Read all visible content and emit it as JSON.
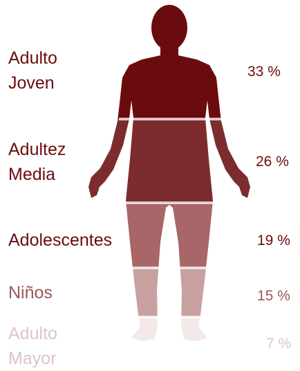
{
  "segments": [
    {
      "label": "Adulto Joven",
      "value": "33 %"
    },
    {
      "label": "Adultez Media",
      "value": "26 %"
    },
    {
      "label": "Adolescentes",
      "value": "19 %"
    },
    {
      "label": "Niños",
      "value": "15 %"
    },
    {
      "label": "Adulto Mayor",
      "value": "7 %"
    }
  ]
}
